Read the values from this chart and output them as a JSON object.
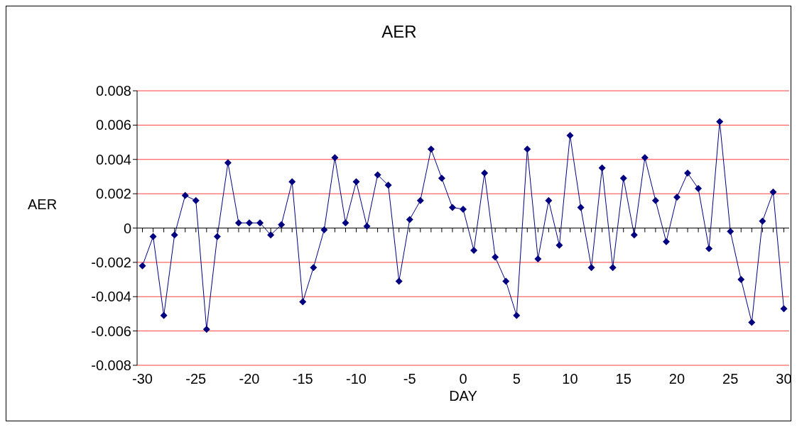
{
  "chart_data": {
    "type": "line",
    "title": "AER",
    "xlabel": "DAY",
    "ylabel": "AER",
    "x": [
      -30,
      -29,
      -28,
      -27,
      -26,
      -25,
      -24,
      -23,
      -22,
      -21,
      -20,
      -19,
      -18,
      -17,
      -16,
      -15,
      -14,
      -13,
      -12,
      -11,
      -10,
      -9,
      -8,
      -7,
      -6,
      -5,
      -4,
      -3,
      -2,
      -1,
      0,
      1,
      2,
      3,
      4,
      5,
      6,
      7,
      8,
      9,
      10,
      11,
      12,
      13,
      14,
      15,
      16,
      17,
      18,
      19,
      20,
      21,
      22,
      23,
      24,
      25,
      26,
      27,
      28,
      29,
      30
    ],
    "series": [
      {
        "color": "#000080",
        "values": [
          -0.0022,
          -0.0005,
          -0.0051,
          -0.0004,
          0.0019,
          0.0016,
          -0.0059,
          -0.0005,
          0.0038,
          0.0003,
          0.0003,
          0.0003,
          -0.0004,
          0.0002,
          0.0027,
          -0.0043,
          -0.0023,
          -0.0001,
          0.0041,
          0.0003,
          0.0027,
          0.0001,
          0.0031,
          0.0025,
          -0.0031,
          0.0005,
          0.0016,
          0.0046,
          0.0029,
          0.0012,
          0.0011,
          -0.0013,
          0.0032,
          -0.0017,
          -0.0031,
          -0.0051,
          0.0046,
          -0.0018,
          0.0016,
          -0.001,
          0.0054,
          0.0012,
          -0.0023,
          0.0035,
          -0.0023,
          0.0029,
          -0.0004,
          0.0041,
          0.0016,
          -0.0008,
          0.0018,
          0.0032,
          0.0023,
          -0.0012,
          0.0062,
          -0.0002,
          -0.003,
          -0.0055,
          0.0004,
          0.0021,
          -0.0047
        ]
      }
    ],
    "xlim": [
      -30.5,
      30.5
    ],
    "xticks": [
      -30,
      {
        "value": -29,
        "label": null
      },
      {
        "value": -28,
        "label": null
      },
      {
        "value": -27,
        "label": null
      },
      {
        "value": -26,
        "label": null
      },
      -25,
      {
        "value": -24,
        "label": null
      },
      {
        "value": -23,
        "label": null
      },
      {
        "value": -22,
        "label": null
      },
      {
        "value": -21,
        "label": null
      },
      -20,
      {
        "value": -19,
        "label": null
      },
      {
        "value": -18,
        "label": null
      },
      {
        "value": -17,
        "label": null
      },
      {
        "value": -16,
        "label": null
      },
      -15,
      {
        "value": -14,
        "label": null
      },
      {
        "value": -13,
        "label": null
      },
      {
        "value": -12,
        "label": null
      },
      {
        "value": -11,
        "label": null
      },
      -10,
      {
        "value": -9,
        "label": null
      },
      {
        "value": -8,
        "label": null
      },
      {
        "value": -7,
        "label": null
      },
      {
        "value": -6,
        "label": null
      },
      -5,
      {
        "value": -4,
        "label": null
      },
      {
        "value": -3,
        "label": null
      },
      {
        "value": -2,
        "label": null
      },
      {
        "value": -1,
        "label": null
      },
      0,
      {
        "value": 1,
        "label": null
      },
      {
        "value": 2,
        "label": null
      },
      {
        "value": 3,
        "label": null
      },
      {
        "value": 4,
        "label": null
      },
      5,
      {
        "value": 6,
        "label": null
      },
      {
        "value": 7,
        "label": null
      },
      {
        "value": 8,
        "label": null
      },
      {
        "value": 9,
        "label": null
      },
      10,
      {
        "value": 11,
        "label": null
      },
      {
        "value": 12,
        "label": null
      },
      {
        "value": 13,
        "label": null
      },
      {
        "value": 14,
        "label": null
      },
      15,
      {
        "value": 16,
        "label": null
      },
      {
        "value": 17,
        "label": null
      },
      {
        "value": 18,
        "label": null
      },
      {
        "value": 19,
        "label": null
      },
      20,
      {
        "value": 21,
        "label": null
      },
      {
        "value": 22,
        "label": null
      },
      {
        "value": 23,
        "label": null
      },
      {
        "value": 24,
        "label": null
      },
      25,
      {
        "value": 26,
        "label": null
      },
      {
        "value": 27,
        "label": null
      },
      {
        "value": 28,
        "label": null
      },
      {
        "value": 29,
        "label": null
      },
      30
    ],
    "ylim": [
      -0.008,
      0.008
    ],
    "yticks": [
      -0.008,
      -0.006,
      -0.004,
      -0.002,
      0,
      0.002,
      0.004,
      0.006,
      0.008
    ],
    "grid": "y",
    "legend": false,
    "marker": "diamond",
    "line_style": "solid"
  }
}
